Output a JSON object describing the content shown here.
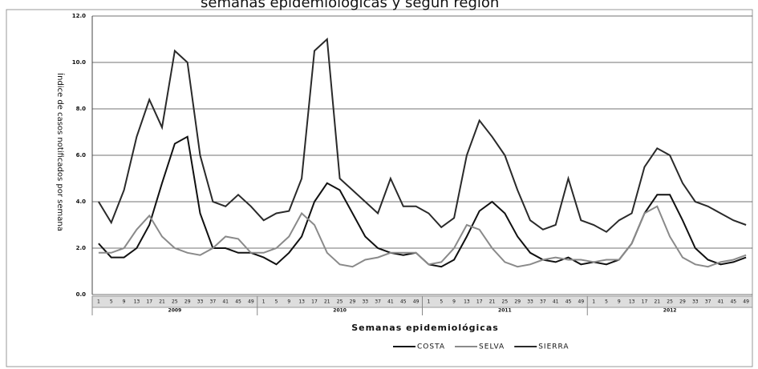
{
  "chart_data": {
    "type": "line",
    "title": "semanas epidemiológicas y según región",
    "y_label": "Índice de casos notificados por semana",
    "x_label": "Semanas epidemiológicas",
    "categories": [
      "1",
      "5",
      "9",
      "13",
      "17",
      "21",
      "25",
      "29",
      "33",
      "37",
      "41",
      "45",
      "49",
      "1",
      "5",
      "9",
      "13",
      "17",
      "21",
      "25",
      "29",
      "33",
      "37",
      "41",
      "45",
      "49",
      "1",
      "5",
      "9",
      "13",
      "17",
      "21",
      "25",
      "29",
      "33",
      "37",
      "41",
      "45",
      "49",
      "1",
      "5",
      "9",
      "13",
      "17",
      "21",
      "25",
      "29",
      "33",
      "37",
      "41",
      "45",
      "49"
    ],
    "year_labels": [
      "2009",
      "2010",
      "2011",
      "2012"
    ],
    "series": [
      {
        "name": "COSTA",
        "color": "#111111",
        "values": [
          2.2,
          1.6,
          1.6,
          2.0,
          3.0,
          4.8,
          6.5,
          6.8,
          3.5,
          2.0,
          2.0,
          1.8,
          1.8,
          1.6,
          1.3,
          1.8,
          2.5,
          4.0,
          4.8,
          4.5,
          3.5,
          2.5,
          2.0,
          1.8,
          1.7,
          1.8,
          1.3,
          1.2,
          1.5,
          2.5,
          3.6,
          4.0,
          3.5,
          2.5,
          1.8,
          1.5,
          1.4,
          1.6,
          1.3,
          1.4,
          1.3,
          1.5,
          2.2,
          3.5,
          4.3,
          4.3,
          3.2,
          2.0,
          1.5,
          1.3,
          1.4,
          1.6
        ]
      },
      {
        "name": "SELVA",
        "color": "#8a8a8a",
        "values": [
          1.8,
          1.8,
          2.0,
          2.8,
          3.4,
          2.5,
          2.0,
          1.8,
          1.7,
          2.0,
          2.5,
          2.4,
          1.8,
          1.8,
          2.0,
          2.5,
          3.5,
          3.0,
          1.8,
          1.3,
          1.2,
          1.5,
          1.6,
          1.8,
          1.8,
          1.8,
          1.3,
          1.4,
          2.0,
          3.0,
          2.8,
          2.0,
          1.4,
          1.2,
          1.3,
          1.5,
          1.6,
          1.5,
          1.5,
          1.4,
          1.5,
          1.5,
          2.2,
          3.5,
          3.8,
          2.5,
          1.6,
          1.3,
          1.2,
          1.4,
          1.5,
          1.7
        ]
      },
      {
        "name": "SIERRA",
        "color": "#2a2a2a",
        "values": [
          4.0,
          3.1,
          4.5,
          6.8,
          8.4,
          7.2,
          10.5,
          10.0,
          6.0,
          4.0,
          3.8,
          4.3,
          3.8,
          3.2,
          3.5,
          3.6,
          5.0,
          10.5,
          11.0,
          5.0,
          4.5,
          4.0,
          3.5,
          5.0,
          3.8,
          3.8,
          3.5,
          2.9,
          3.3,
          6.0,
          7.5,
          6.8,
          6.0,
          4.5,
          3.2,
          2.8,
          3.0,
          5.0,
          3.2,
          3.0,
          2.7,
          3.2,
          3.5,
          5.5,
          6.3,
          6.0,
          4.8,
          4.0,
          3.8,
          3.5,
          3.2,
          3.0
        ]
      }
    ],
    "ylim": [
      0,
      12
    ],
    "yticks": [
      {
        "value": 0,
        "label": "0.0"
      },
      {
        "value": 2,
        "label": "2.0"
      },
      {
        "value": 4,
        "label": "4.0"
      },
      {
        "value": 6,
        "label": "6.0"
      },
      {
        "value": 8,
        "label": "8.0"
      },
      {
        "value": 10,
        "label": "10.0"
      },
      {
        "value": 12,
        "label": "12.0"
      }
    ],
    "grid": true
  }
}
